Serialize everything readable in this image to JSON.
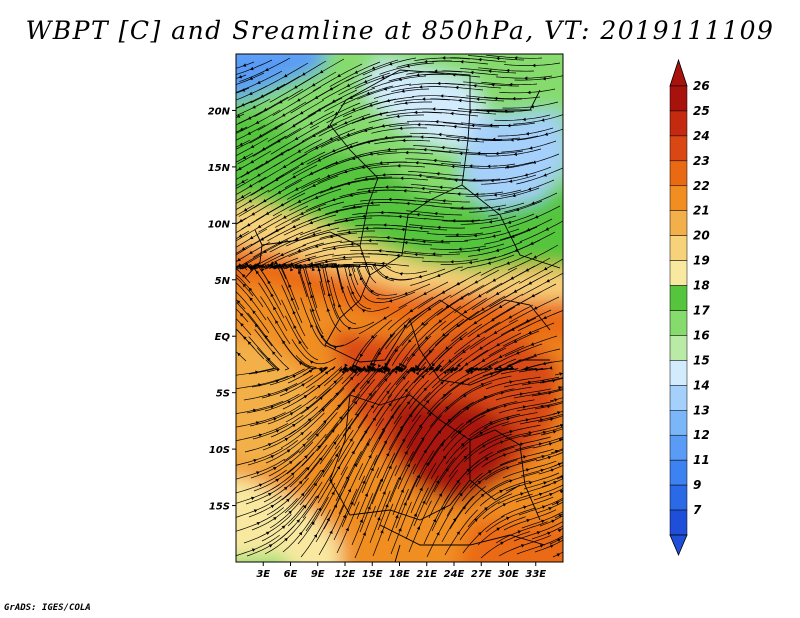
{
  "title": "WBPT [C] and Sreamline at 850hPa, VT: 2019111109",
  "credit": "GrADS: IGES/COLA",
  "map": {
    "lon_range": [
      0,
      36
    ],
    "lat_range": [
      -20,
      25
    ],
    "lon_ticks": [
      {
        "value": 3,
        "label": "3E"
      },
      {
        "value": 6,
        "label": "6E"
      },
      {
        "value": 9,
        "label": "9E"
      },
      {
        "value": 12,
        "label": "12E"
      },
      {
        "value": 15,
        "label": "15E"
      },
      {
        "value": 18,
        "label": "18E"
      },
      {
        "value": 21,
        "label": "21E"
      },
      {
        "value": 24,
        "label": "24E"
      },
      {
        "value": 27,
        "label": "27E"
      },
      {
        "value": 30,
        "label": "30E"
      },
      {
        "value": 33,
        "label": "33E"
      }
    ],
    "lat_ticks": [
      {
        "value": 20,
        "label": "20N"
      },
      {
        "value": 15,
        "label": "15N"
      },
      {
        "value": 10,
        "label": "10N"
      },
      {
        "value": 5,
        "label": "5N"
      },
      {
        "value": 0,
        "label": "EQ"
      },
      {
        "value": -5,
        "label": "5S"
      },
      {
        "value": -10,
        "label": "10S"
      },
      {
        "value": -15,
        "label": "15S"
      }
    ],
    "field": "wet-bulb potential temperature",
    "overlay": "streamlines"
  },
  "colorbar": {
    "levels": [
      "7",
      "9",
      "11",
      "12",
      "13",
      "14",
      "15",
      "16",
      "17",
      "18",
      "19",
      "20",
      "21",
      "22",
      "23",
      "24",
      "25",
      "26"
    ],
    "colors": [
      "#1f4fd8",
      "#2a6ae6",
      "#3c82f0",
      "#5a9cf5",
      "#7ab6f8",
      "#a5d0fb",
      "#d2ecfd",
      "#b9eba6",
      "#86db6d",
      "#55c53d",
      "#f9e9a0",
      "#f6d27a",
      "#f3b04a",
      "#f08e21",
      "#ea6a14",
      "#d94812",
      "#c42a0f",
      "#a8120c"
    ]
  }
}
